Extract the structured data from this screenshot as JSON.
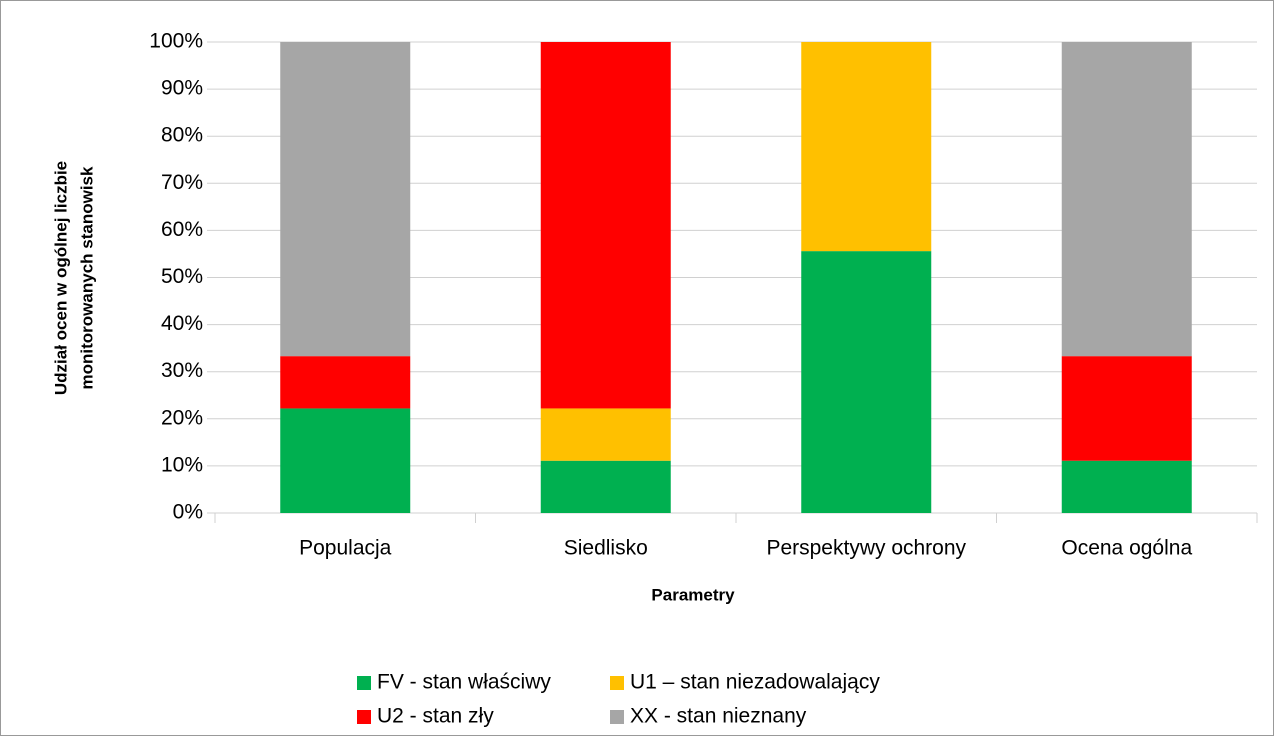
{
  "chart_data": {
    "type": "stacked_bar",
    "y_label": [
      "Udział ocen w ogólnej liczbie",
      "monitorowanych stanowisk"
    ],
    "x_label": "Parametry",
    "categories": [
      "Populacja",
      "Siedlisko",
      "Perspektywy ochrony",
      "Ocena ogólna"
    ],
    "series": [
      {
        "name": "FV - stan właściwy",
        "color": "#00b050",
        "values": [
          22.2,
          11.1,
          55.6,
          11.1
        ]
      },
      {
        "name": "U1 – stan niezadowalający",
        "color": "#ffc000",
        "values": [
          0,
          11.1,
          44.4,
          0
        ]
      },
      {
        "name": "U2 - stan zły",
        "color": "#ff0000",
        "values": [
          11.1,
          77.8,
          0,
          22.2
        ]
      },
      {
        "name": "XX - stan nieznany",
        "color": "#a6a6a6",
        "values": [
          66.7,
          0,
          0,
          66.7
        ]
      }
    ],
    "ylim": [
      0,
      100
    ],
    "yticks": [
      {
        "value": 0,
        "label": "0%"
      },
      {
        "value": 10,
        "label": "10%"
      },
      {
        "value": 20,
        "label": "20%"
      },
      {
        "value": 30,
        "label": "30%"
      },
      {
        "value": 40,
        "label": "40%"
      },
      {
        "value": 50,
        "label": "50%"
      },
      {
        "value": 60,
        "label": "60%"
      },
      {
        "value": 70,
        "label": "70%"
      },
      {
        "value": 80,
        "label": "80%"
      },
      {
        "value": 90,
        "label": "90%"
      },
      {
        "value": 100,
        "label": "100%"
      }
    ],
    "grid": true
  }
}
